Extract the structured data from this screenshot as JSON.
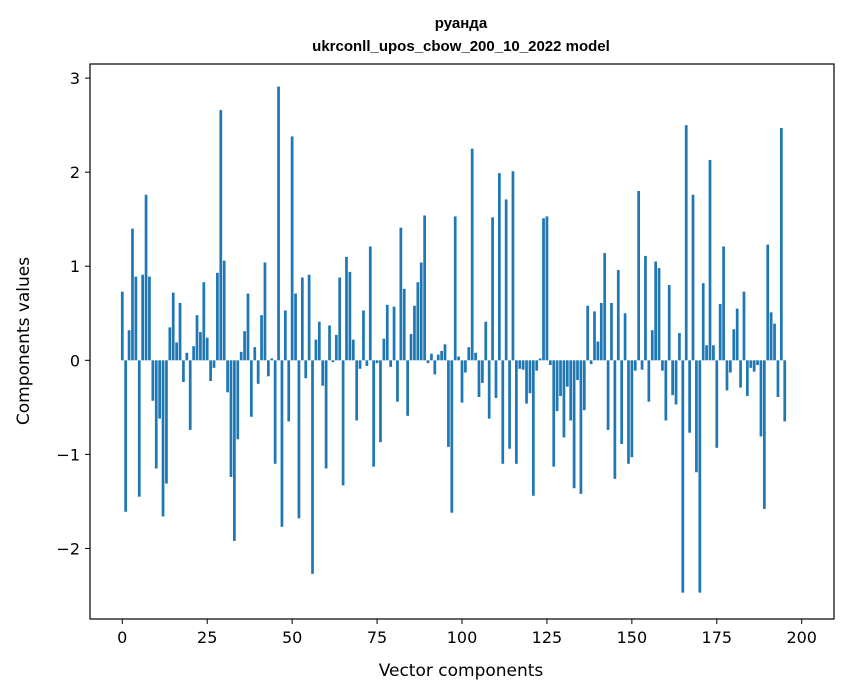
{
  "chart_data": {
    "type": "bar",
    "title": "руанда",
    "subtitle": "ukrconll_upos_cbow_200_10_2022 model",
    "xlabel": "Vector components",
    "ylabel": "Components values",
    "xlim": [
      -9.5,
      209.5
    ],
    "ylim": [
      -2.75,
      3.15
    ],
    "xticks": [
      0,
      25,
      50,
      75,
      100,
      125,
      150,
      175,
      200
    ],
    "yticks": [
      -2,
      -1,
      0,
      1,
      2,
      3
    ],
    "ytick_labels": [
      "−2",
      "−1",
      "0",
      "1",
      "2",
      "3"
    ],
    "grid": false,
    "bar_color": "#1f77b4",
    "values": [
      0.73,
      -1.61,
      0.32,
      1.4,
      0.89,
      -1.45,
      0.91,
      1.76,
      0.89,
      -0.43,
      -1.15,
      -0.62,
      -1.66,
      -1.31,
      0.35,
      0.72,
      0.19,
      0.61,
      -0.23,
      0.08,
      -0.74,
      0.15,
      0.48,
      0.3,
      0.83,
      0.24,
      -0.22,
      -0.08,
      0.93,
      2.66,
      1.06,
      -0.34,
      -1.24,
      -1.92,
      -0.84,
      0.09,
      0.31,
      0.71,
      -0.6,
      0.14,
      -0.25,
      0.48,
      1.04,
      -0.17,
      0.02,
      -1.1,
      2.91,
      -1.77,
      0.53,
      -0.65,
      2.38,
      0.71,
      -1.68,
      0.88,
      -0.19,
      0.91,
      -2.27,
      0.22,
      0.41,
      -0.27,
      -1.15,
      0.37,
      -0.02,
      0.27,
      0.88,
      -1.33,
      1.1,
      0.94,
      0.22,
      -0.64,
      -0.09,
      0.53,
      -0.06,
      1.21,
      -1.13,
      -0.03,
      -0.87,
      0.23,
      0.59,
      -0.07,
      0.57,
      -0.44,
      1.41,
      0.76,
      -0.59,
      0.28,
      0.58,
      0.83,
      1.04,
      1.54,
      -0.03,
      0.07,
      -0.15,
      0.06,
      0.1,
      0.17,
      -0.92,
      -1.62,
      1.53,
      0.04,
      -0.45,
      -0.13,
      0.14,
      2.25,
      0.08,
      -0.39,
      -0.24,
      0.41,
      -0.62,
      1.52,
      -0.4,
      1.99,
      -1.1,
      1.71,
      -0.94,
      2.01,
      -1.1,
      -0.09,
      -0.1,
      -0.46,
      -0.35,
      -1.44,
      -0.11,
      0.02,
      1.51,
      1.53,
      -0.05,
      -1.13,
      -0.54,
      -0.38,
      -0.82,
      -0.28,
      -0.64,
      -1.36,
      -0.21,
      -1.42,
      -0.53,
      0.58,
      -0.04,
      0.52,
      0.2,
      0.61,
      1.14,
      -0.74,
      0.61,
      -1.26,
      0.96,
      -0.89,
      0.5,
      -1.1,
      -1.03,
      -0.11,
      1.8,
      -0.1,
      1.11,
      -0.44,
      0.32,
      1.05,
      0.98,
      -0.11,
      -0.64,
      0.8,
      -0.37,
      -0.47,
      0.29,
      -2.47,
      2.5,
      -0.77,
      1.76,
      -1.19,
      -2.47,
      0.82,
      0.16,
      2.13,
      0.16,
      -0.93,
      0.6,
      1.21,
      -0.32,
      -0.13,
      0.33,
      0.55,
      -0.29,
      0.73,
      -0.38,
      -0.08,
      -0.12,
      -0.05,
      -0.81,
      -1.58,
      1.23,
      0.51,
      0.39,
      -0.39,
      2.47,
      -0.65
    ]
  }
}
